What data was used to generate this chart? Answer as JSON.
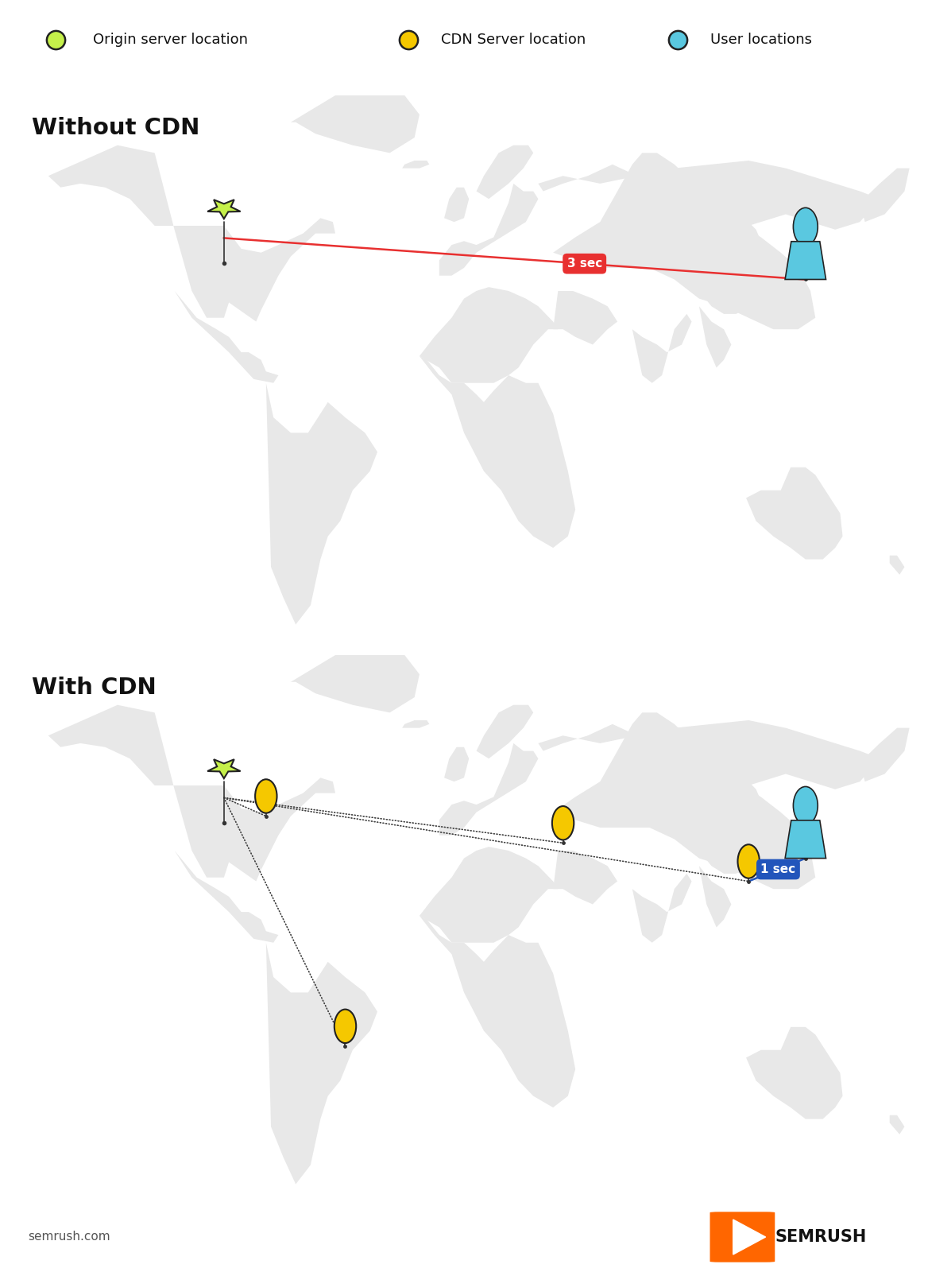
{
  "bg_color": "#ffffff",
  "title1": "Without CDN",
  "title2": "With CDN",
  "map_color": "#e8e8e8",
  "star_color": "#c5f04a",
  "star_edge": "#222222",
  "cdn_node_color": "#f5c800",
  "cdn_node_edge": "#222222",
  "user_color": "#5ac8e0",
  "user_edge": "#222222",
  "red_line_color": "#e83030",
  "blue_line_color": "#2255bb",
  "dashed_line_color": "#444444",
  "label_3sec": "3 sec",
  "label_1sec": "1 sec",
  "label_bg_red": "#e83030",
  "label_bg_blue": "#2255bb",
  "footer_left": "semrush.com",
  "footer_right": "SEMRUSH",
  "semrush_orange": "#ff6600",
  "legend_green": "#c5f04a",
  "legend_yellow": "#f5c800",
  "legend_cyan": "#5ac8e0"
}
